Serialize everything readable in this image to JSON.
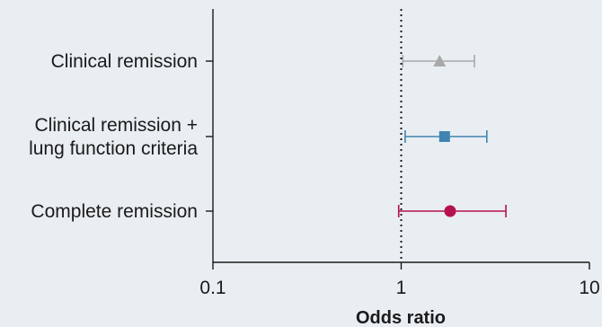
{
  "chart_data": {
    "type": "forest",
    "xlabel": "Odds ratio",
    "xscale": "log",
    "xlim": [
      0.1,
      10
    ],
    "xticks": [
      "0.1",
      "1",
      "10"
    ],
    "reference_line": 1,
    "categories": [
      {
        "label_lines": [
          "Clinical remission"
        ],
        "estimate": 1.6,
        "ci_low": 1.02,
        "ci_high": 2.45,
        "marker": "triangle",
        "color": "#a8a8a8"
      },
      {
        "label_lines": [
          "Clinical remission +",
          "lung function criteria"
        ],
        "estimate": 1.7,
        "ci_low": 1.05,
        "ci_high": 2.85,
        "marker": "square",
        "color": "#3f84b0"
      },
      {
        "label_lines": [
          "Complete remission"
        ],
        "estimate": 1.82,
        "ci_low": 0.97,
        "ci_high": 3.6,
        "marker": "circle",
        "color": "#b5124d"
      }
    ]
  }
}
